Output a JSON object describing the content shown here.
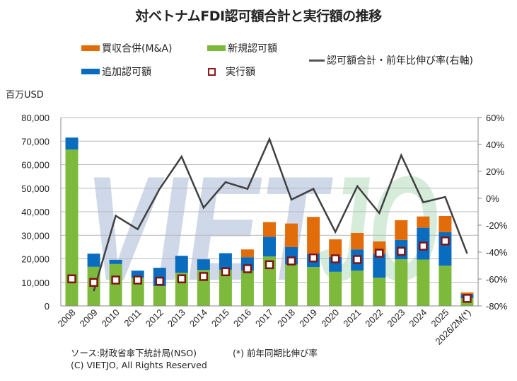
{
  "title": "対ベトナムFDI認可額合計と実行額の推移",
  "unit_label": "百万USD",
  "legend": {
    "ma": "買収合併(M&A)",
    "new": "新規認可額",
    "additional": "追加認可額",
    "execution": "実行額",
    "growth": "認可額合計・前年比伸び率(右軸)"
  },
  "footer": {
    "source": "ソース:財政省傘下統計局(NSO)",
    "note": "(*) 前年同期比伸び率",
    "copyright": "(C) VIETJO,  All Rights Reserved"
  },
  "watermark": "VIETJO",
  "colors": {
    "ma": "#e36c0a",
    "new": "#7dba3c",
    "additional": "#0a6cbf",
    "execution_border": "#7f1414",
    "execution_fill": "#ffffff",
    "growth": "#404040",
    "grid": "#b8b8b8",
    "watermark_viet": "#cfd8e8",
    "watermark_jo": "#d6ecdb"
  },
  "chart_data": {
    "type": "bar",
    "stacked": true,
    "title": "対ベトナムFDI認可額合計と実行額の推移",
    "xlabel": "",
    "ylabel": "百万USD",
    "y2label": "認可額合計・前年比伸び率(右軸)",
    "categories": [
      "2008",
      "2009",
      "2010",
      "2011",
      "2012",
      "2013",
      "2014",
      "2015",
      "2016",
      "2017",
      "2018",
      "2019",
      "2020",
      "2021",
      "2022",
      "2023",
      "2024",
      "2025",
      "2026/2M(*)"
    ],
    "ylim": [
      0,
      80000
    ],
    "yticks": [
      0,
      10000,
      20000,
      30000,
      40000,
      50000,
      60000,
      70000,
      80000
    ],
    "ytick_labels": [
      "0",
      "10,000",
      "20,000",
      "30,000",
      "40,000",
      "50,000",
      "60,000",
      "70,000",
      "80,000"
    ],
    "y2lim": [
      -80,
      60
    ],
    "y2ticks": [
      -80,
      -60,
      -40,
      -20,
      0,
      20,
      40,
      60
    ],
    "y2tick_labels": [
      "-80%",
      "-60%",
      "-40%",
      "-20%",
      "0%",
      "20%",
      "40%",
      "60%"
    ],
    "grid": true,
    "legend_position": "top",
    "series": [
      {
        "name": "新規認可額",
        "type": "bar",
        "axis": "left",
        "values": [
          66400,
          16600,
          17800,
          11900,
          8400,
          14100,
          15300,
          15400,
          15000,
          21000,
          17600,
          16500,
          14500,
          15000,
          12000,
          19800,
          19700,
          17100,
          3300
        ]
      },
      {
        "name": "追加認可額",
        "type": "bar",
        "axis": "left",
        "values": [
          5100,
          5600,
          1800,
          3100,
          7800,
          7200,
          4500,
          7000,
          5700,
          8400,
          7400,
          5800,
          6300,
          9000,
          10200,
          8200,
          13500,
          14200,
          1700
        ]
      },
      {
        "name": "買収合併(M&A)",
        "type": "bar",
        "axis": "left",
        "values": [
          0,
          0,
          0,
          0,
          0,
          0,
          0,
          0,
          3300,
          6200,
          10000,
          15500,
          7500,
          7000,
          5200,
          8400,
          4800,
          6900,
          700
        ]
      },
      {
        "name": "実行額",
        "type": "marker",
        "axis": "left",
        "values": [
          11500,
          10000,
          11000,
          11000,
          10500,
          11500,
          12500,
          14500,
          15800,
          17500,
          19100,
          20400,
          20000,
          19700,
          22400,
          23200,
          25400,
          27600,
          3200
        ]
      },
      {
        "name": "認可額合計・前年比伸び率(右軸)",
        "type": "line",
        "axis": "right",
        "unit": "%",
        "values": [
          null,
          -69,
          -13,
          -23,
          7,
          31,
          -7,
          12,
          7,
          44,
          -1,
          7,
          -25,
          9,
          -11,
          32,
          -3,
          1,
          -41
        ]
      }
    ]
  }
}
